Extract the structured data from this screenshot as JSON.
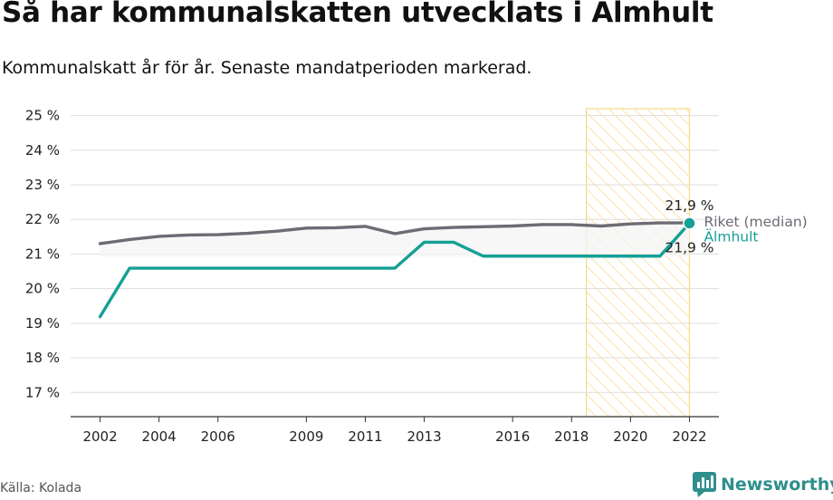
{
  "header": {
    "title": "Så har kommunalskatten utvecklats i Älmhult",
    "subtitle": "Kommunalskatt år för år. Senaste mandatperioden markerad."
  },
  "footer": {
    "source": "Källa: Kolada",
    "brand": "Newsworthy"
  },
  "colors": {
    "riket": "#6d6b73",
    "almhult": "#15a095",
    "highlight_stroke": "#f8d889",
    "band_fill": "#f4f4f4",
    "grid": "#dddddd"
  },
  "chart_data": {
    "type": "line",
    "title": "Så har kommunalskatten utvecklats i Älmhult",
    "subtitle": "Kommunalskatt år för år. Senaste mandatperioden markerad.",
    "xlabel": "",
    "ylabel": "",
    "x": [
      2002,
      2003,
      2004,
      2005,
      2006,
      2007,
      2008,
      2009,
      2010,
      2011,
      2012,
      2013,
      2014,
      2015,
      2016,
      2017,
      2018,
      2019,
      2020,
      2021,
      2022
    ],
    "series": [
      {
        "name": "Riket (median)",
        "values": [
          21.3,
          21.42,
          21.51,
          21.55,
          21.56,
          21.6,
          21.66,
          21.75,
          21.76,
          21.8,
          21.59,
          21.73,
          21.77,
          21.79,
          21.81,
          21.85,
          21.85,
          21.81,
          21.87,
          21.9,
          21.9
        ]
      },
      {
        "name": "Älmhult",
        "values": [
          19.19,
          20.59,
          20.59,
          20.59,
          20.59,
          20.59,
          20.59,
          20.59,
          20.59,
          20.59,
          20.59,
          21.34,
          21.34,
          20.94,
          20.94,
          20.94,
          20.94,
          20.94,
          20.94,
          20.94,
          21.89
        ]
      }
    ],
    "end_labels": {
      "riket_value": "21,9 %",
      "almhult_value": "21,9 %"
    },
    "x_ticks": [
      "2002",
      "2004",
      "2006",
      "2009",
      "2011",
      "2013",
      "2016",
      "2018",
      "2020",
      "2022"
    ],
    "x_tick_values": [
      2002,
      2004,
      2006,
      2009,
      2011,
      2013,
      2016,
      2018,
      2020,
      2022
    ],
    "y_ticks": [
      "17 %",
      "18 %",
      "19 %",
      "20 %",
      "21 %",
      "22 %",
      "23 %",
      "24 %",
      "25 %"
    ],
    "y_tick_values": [
      17,
      18,
      19,
      20,
      21,
      22,
      23,
      24,
      25
    ],
    "ylim": [
      16.3,
      25.2
    ],
    "xlim": [
      2001.0,
      2023.0
    ],
    "highlight_period": [
      2018.5,
      2022
    ],
    "grid": true,
    "legend": "direct labels at line ends, right"
  }
}
